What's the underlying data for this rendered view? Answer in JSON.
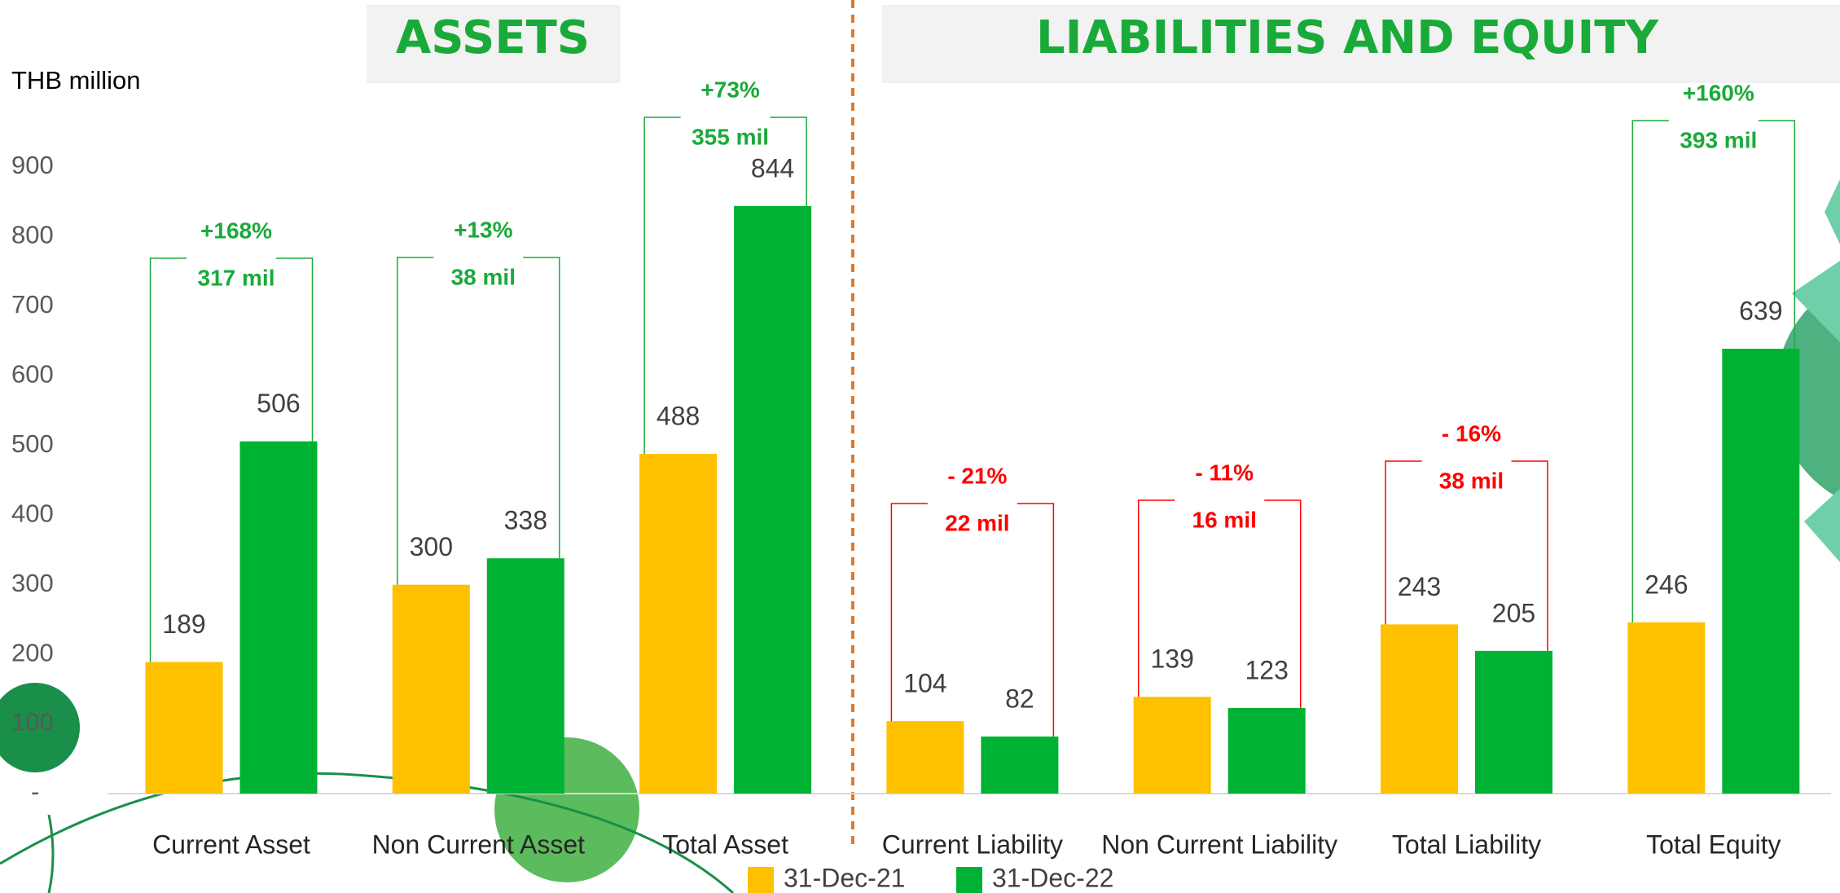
{
  "chart_data": {
    "type": "bar",
    "headers": [
      "ASSETS",
      "LIABILITIES AND EQUITY"
    ],
    "y_label": "THB million",
    "categories": [
      "Current Asset",
      "Non Current Asset",
      "Total Asset",
      "Current Liability",
      "Non Current Liability",
      "Total Liability",
      "Total Equity"
    ],
    "series": [
      {
        "name": "31-Dec-21",
        "color": "#ffc000",
        "values": [
          189,
          300,
          488,
          104,
          139,
          243,
          246
        ]
      },
      {
        "name": "31-Dec-22",
        "color": "#00b233",
        "values": [
          506,
          338,
          844,
          82,
          123,
          205,
          639
        ]
      }
    ],
    "annotations": [
      {
        "change": "+168%",
        "amount": "317 mil",
        "color": "#1aaa3a"
      },
      {
        "change": "+13%",
        "amount": "38 mil",
        "color": "#1aaa3a"
      },
      {
        "change": "+73%",
        "amount": "355 mil",
        "color": "#1aaa3a"
      },
      {
        "change": "- 21%",
        "amount": "22 mil",
        "color": "#ff0000"
      },
      {
        "change": "- 11%",
        "amount": "16 mil",
        "color": "#ff0000"
      },
      {
        "change": "- 16%",
        "amount": "38 mil",
        "color": "#ff0000"
      },
      {
        "change": "+160%",
        "amount": "393 mil",
        "color": "#1aaa3a"
      }
    ],
    "ylim": [
      0,
      900
    ],
    "yticks": [
      {
        "value": 0,
        "label": "-"
      },
      100,
      200,
      300,
      400,
      500,
      600,
      700,
      800,
      900
    ],
    "grid": false
  }
}
